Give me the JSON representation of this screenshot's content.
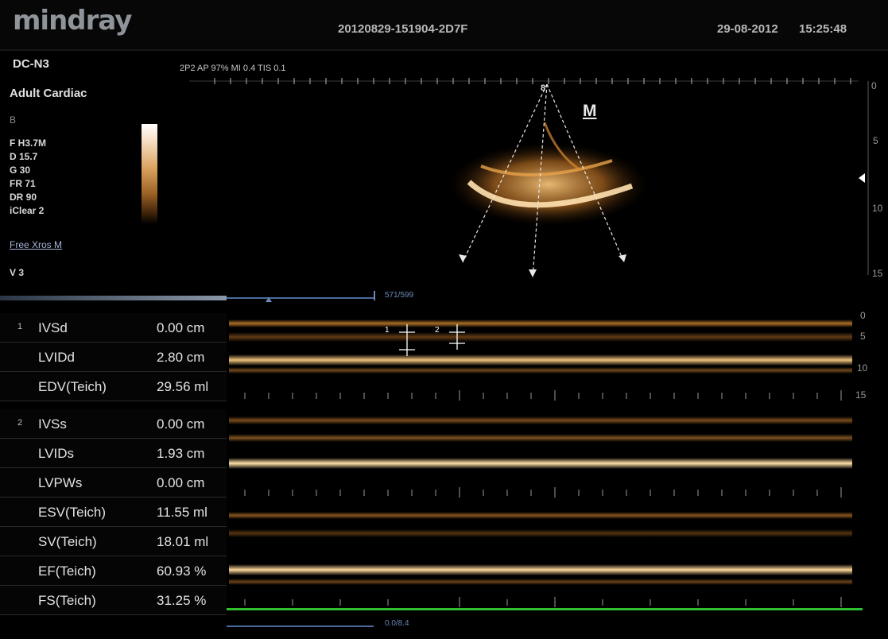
{
  "header": {
    "brand": "mindray",
    "exam_id": "20120829-151904-2D7F",
    "date": "29-08-2012",
    "time": "15:25:48"
  },
  "left_panel": {
    "probe": "DC-N3",
    "preset": "Adult Cardiac",
    "mode": "B",
    "params": [
      "F H3.7M",
      "D 15.7",
      "G 30",
      "FR 71",
      "DR 90",
      "iClear 2"
    ],
    "free_xros": "Free Xros",
    "free_xros_mode": "M",
    "v": "V 3"
  },
  "power_text": "2P2  AP 97%  MI 0.4 TIS 0.1",
  "image": {
    "mark_label": "M",
    "line_number": "8"
  },
  "depth_scale_2d": [
    "0",
    "5",
    "10",
    "15"
  ],
  "depth_scale_m": [
    "0",
    "5",
    "10",
    "15"
  ],
  "frame_counter": "571/599",
  "frame_counter_bottom": "0.0/8.4",
  "caliper_labels": [
    "1",
    "2"
  ],
  "measurements": {
    "group1": {
      "number": "1",
      "rows": [
        {
          "name": "IVSd",
          "value": "0.00 cm"
        },
        {
          "name": "LVIDd",
          "value": "2.80 cm"
        },
        {
          "name": "EDV(Teich)",
          "value": "29.56 ml"
        }
      ]
    },
    "group2": {
      "number": "2",
      "rows": [
        {
          "name": "IVSs",
          "value": "0.00 cm"
        },
        {
          "name": "LVIDs",
          "value": "1.93 cm"
        },
        {
          "name": "LVPWs",
          "value": "0.00 cm"
        },
        {
          "name": "ESV(Teich)",
          "value": "11.55 ml"
        },
        {
          "name": "SV(Teich)",
          "value": "18.01 ml"
        },
        {
          "name": "EF(Teich)",
          "value": "60.93 %"
        },
        {
          "name": "FS(Teich)",
          "value": "31.25 %"
        }
      ]
    }
  },
  "colors": {
    "echo": "#e7a24a",
    "timeline_marker": "#2ec02e",
    "ui_text": "#d8d8d8"
  }
}
